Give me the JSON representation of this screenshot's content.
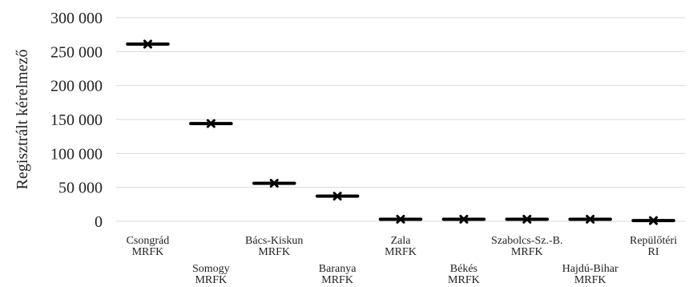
{
  "chart_data": {
    "type": "scatter",
    "title": "",
    "xlabel": "",
    "ylabel": "Regisztrált kérelmező",
    "ylim": [
      0,
      300000
    ],
    "yticks": [
      0,
      50000,
      100000,
      150000,
      200000,
      250000,
      300000
    ],
    "ytick_labels": [
      "0",
      "50 000",
      "100 000",
      "150 000",
      "200 000",
      "250 000",
      "300 000"
    ],
    "grid": true,
    "legend": "none",
    "marker": "x-with-horizontal-bar",
    "color": "#000000",
    "categories": [
      [
        "Csongrád",
        "MRFK"
      ],
      [
        "Somogy",
        "MRFK"
      ],
      [
        "Bács-Kiskun",
        "MRFK"
      ],
      [
        "Baranya",
        "MRFK"
      ],
      [
        "Zala",
        "MRFK"
      ],
      [
        "Békés",
        "MRFK"
      ],
      [
        "Szabolcs-Sz.-B.",
        "MRFK"
      ],
      [
        "Hajdú-Bihar",
        "MRFK"
      ],
      [
        "Repülőtéri",
        "RI"
      ]
    ],
    "values": [
      261000,
      144000,
      56000,
      37000,
      3000,
      3000,
      3000,
      3000,
      1000
    ]
  }
}
